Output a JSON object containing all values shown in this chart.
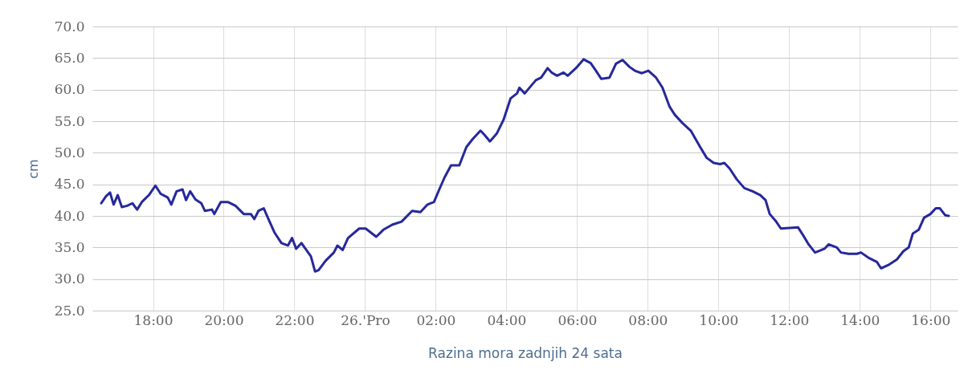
{
  "chart_data": {
    "type": "line",
    "xlabel": "Razina mora zadnjih 24 sata",
    "ylabel": "cm",
    "x": [
      "--12-25T16:32",
      "--12-25T16:40",
      "--12-25T16:47",
      "--12-25T16:53",
      "--12-25T17:00",
      "--12-25T17:07",
      "--12-25T17:16",
      "--12-25T17:25",
      "--12-25T17:33",
      "--12-25T17:41",
      "--12-25T17:53",
      "--12-25T18:04",
      "--12-25T18:13",
      "--12-25T18:25",
      "--12-25T18:31",
      "--12-25T18:40",
      "--12-25T18:50",
      "--12-25T18:56",
      "--12-25T19:03",
      "--12-25T19:12",
      "--12-25T19:22",
      "--12-25T19:28",
      "--12-25T19:40",
      "--12-25T19:44",
      "--12-25T19:55",
      "--12-25T20:07",
      "--12-25T20:20",
      "--12-25T20:34",
      "--12-25T20:46",
      "--12-25T20:52",
      "--12-25T20:59",
      "--12-25T21:08",
      "--12-25T21:15",
      "--12-25T21:26",
      "--12-25T21:38",
      "--12-25T21:49",
      "--12-25T21:56",
      "--12-25T22:03",
      "--12-25T22:12",
      "--12-25T22:28",
      "--12-25T22:35",
      "--12-25T22:41",
      "--12-25T22:53",
      "--12-25T23:07",
      "--12-25T23:13",
      "--12-25T23:22",
      "--12-25T23:31",
      "--12-25T23:50",
      "--12-26T00:01",
      "--12-26T00:19",
      "--12-26T00:31",
      "--12-26T00:46",
      "--12-26T01:02",
      "--12-26T01:20",
      "--12-26T01:34",
      "--12-26T01:46",
      "--12-26T01:57",
      "--12-26T02:06",
      "--12-26T02:15",
      "--12-26T02:26",
      "--12-26T02:40",
      "--12-26T02:52",
      "--12-26T03:03",
      "--12-26T03:16",
      "--12-26T03:23",
      "--12-26T03:32",
      "--12-26T03:44",
      "--12-26T03:55",
      "--12-26T04:07",
      "--12-26T04:18",
      "--12-26T04:22",
      "--12-26T04:31",
      "--12-26T04:50",
      "--12-26T04:59",
      "--12-26T05:10",
      "--12-26T05:17",
      "--12-26T05:26",
      "--12-26T05:37",
      "--12-26T05:44",
      "--12-26T05:58",
      "--12-26T06:11",
      "--12-26T06:23",
      "--12-26T06:32",
      "--12-26T06:41",
      "--12-26T06:55",
      "--12-26T07:06",
      "--12-26T07:17",
      "--12-26T07:29",
      "--12-26T07:38",
      "--12-26T07:50",
      "--12-26T08:01",
      "--12-26T08:14",
      "--12-26T08:25",
      "--12-26T08:37",
      "--12-26T08:46",
      "--12-26T08:59",
      "--12-26T09:13",
      "--12-26T09:29",
      "--12-26T09:40",
      "--12-26T09:52",
      "--12-26T10:03",
      "--12-26T10:10",
      "--12-26T10:19",
      "--12-26T10:31",
      "--12-26T10:44",
      "--12-26T10:58",
      "--12-26T11:11",
      "--12-26T11:20",
      "--12-26T11:27",
      "--12-26T11:38",
      "--12-26T11:46",
      "--12-26T12:15",
      "--12-26T12:24",
      "--12-26T12:33",
      "--12-26T12:44",
      "--12-26T13:00",
      "--12-26T13:07",
      "--12-26T13:21",
      "--12-26T13:28",
      "--12-26T13:41",
      "--12-26T13:55",
      "--12-26T14:02",
      "--12-26T14:16",
      "--12-26T14:29",
      "--12-26T14:36",
      "--12-26T14:50",
      "--12-26T15:03",
      "--12-26T15:14",
      "--12-26T15:23",
      "--12-26T15:30",
      "--12-26T15:40",
      "--12-26T15:49",
      "--12-26T16:00",
      "--12-26T16:09",
      "--12-26T16:16",
      "--12-26T16:25",
      "--12-26T16:31"
    ],
    "series": [
      {
        "color": "#26289a",
        "values": [
          42.0,
          43.1,
          43.7,
          41.8,
          43.3,
          41.4,
          41.6,
          42.0,
          41.0,
          42.2,
          43.3,
          44.8,
          43.5,
          42.9,
          41.8,
          43.9,
          44.2,
          42.5,
          43.9,
          42.6,
          42.0,
          40.8,
          41.0,
          40.3,
          42.2,
          42.2,
          41.6,
          40.3,
          40.3,
          39.5,
          40.8,
          41.2,
          39.7,
          37.4,
          35.7,
          35.3,
          36.5,
          34.8,
          35.7,
          33.6,
          31.2,
          31.4,
          32.9,
          34.2,
          35.3,
          34.6,
          36.5,
          38.0,
          38.0,
          36.7,
          37.8,
          38.6,
          39.1,
          40.8,
          40.6,
          41.8,
          42.2,
          44.2,
          46.1,
          48.0,
          48.0,
          50.9,
          52.2,
          53.5,
          52.8,
          51.8,
          53.1,
          55.2,
          58.6,
          59.4,
          60.3,
          59.4,
          61.5,
          61.9,
          63.4,
          62.7,
          62.2,
          62.7,
          62.2,
          63.4,
          64.8,
          64.2,
          63.0,
          61.7,
          61.9,
          64.1,
          64.7,
          63.6,
          63.0,
          62.6,
          63.0,
          61.9,
          60.3,
          57.3,
          56.0,
          54.7,
          53.5,
          50.9,
          49.2,
          48.4,
          48.2,
          48.4,
          47.5,
          45.8,
          44.4,
          43.9,
          43.3,
          42.5,
          40.3,
          39.1,
          38.0,
          38.2,
          36.9,
          35.5,
          34.2,
          34.8,
          35.5,
          35.0,
          34.2,
          34.0,
          34.0,
          34.2,
          33.3,
          32.7,
          31.7,
          32.3,
          33.1,
          34.4,
          35.0,
          37.2,
          37.8,
          39.7,
          40.3,
          41.2,
          41.2,
          40.1,
          40.0
        ]
      }
    ],
    "xlim": [
      "--12-25T16:17",
      "--12-26T16:46"
    ],
    "xticks": [
      {
        "value": "--12-25T18:00",
        "label": "18:00"
      },
      {
        "value": "--12-25T20:00",
        "label": "20:00"
      },
      {
        "value": "--12-25T22:00",
        "label": "22:00"
      },
      {
        "value": "--12-26T00:00",
        "label": "26.'Pro"
      },
      {
        "value": "--12-26T02:00",
        "label": "02:00"
      },
      {
        "value": "--12-26T04:00",
        "label": "04:00"
      },
      {
        "value": "--12-26T06:00",
        "label": "06:00"
      },
      {
        "value": "--12-26T08:00",
        "label": "08:00"
      },
      {
        "value": "--12-26T10:00",
        "label": "10:00"
      },
      {
        "value": "--12-26T12:00",
        "label": "12:00"
      },
      {
        "value": "--12-26T14:00",
        "label": "14:00"
      },
      {
        "value": "--12-26T16:00",
        "label": "16:00"
      }
    ],
    "ylim": [
      25,
      70
    ],
    "yticks": [
      {
        "value": 25,
        "label": "25.0"
      },
      {
        "value": 30,
        "label": "30.0"
      },
      {
        "value": 35,
        "label": "35.0"
      },
      {
        "value": 40,
        "label": "40.0"
      },
      {
        "value": 45,
        "label": "45.0"
      },
      {
        "value": 50,
        "label": "50.0"
      },
      {
        "value": 55,
        "label": "55.0"
      },
      {
        "value": 60,
        "label": "60.0"
      },
      {
        "value": 65,
        "label": "65.0"
      },
      {
        "value": 70,
        "label": "70.0"
      }
    ],
    "grid": true,
    "marker": "none",
    "line_style": "solid"
  }
}
